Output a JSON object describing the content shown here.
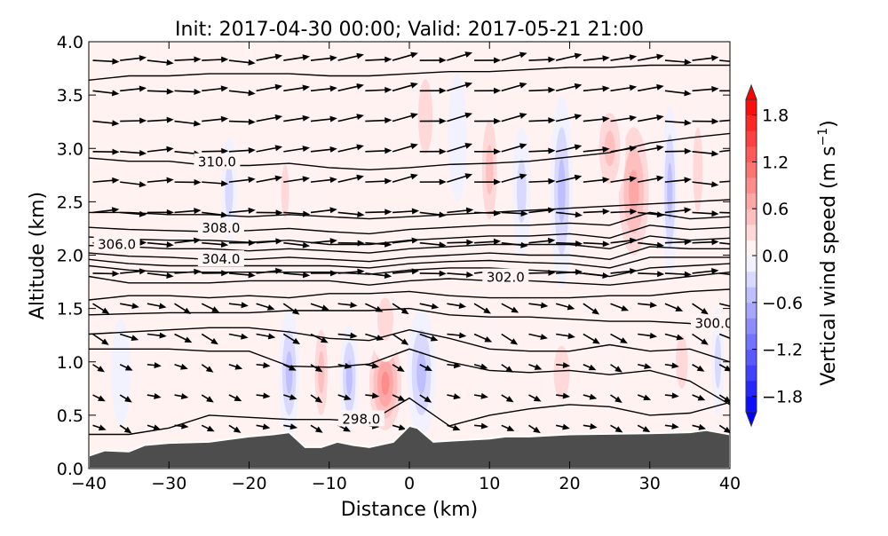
{
  "chart_data": {
    "type": "contourf-cross-section",
    "title": "Init: 2017-04-30 00:00; Valid: 2017-05-21 21:00",
    "xlabel": "Distance (km)",
    "ylabel": "Altitude (km)",
    "xlim": [
      -40,
      40
    ],
    "ylim": [
      0,
      4
    ],
    "xticks": [
      "−40",
      "−30",
      "−20",
      "−10",
      "0",
      "10",
      "20",
      "30",
      "40"
    ],
    "xtick_values": [
      -40,
      -30,
      -20,
      -10,
      0,
      10,
      20,
      30,
      40
    ],
    "yticks": [
      "0.0",
      "0.5",
      "1.0",
      "1.5",
      "2.0",
      "2.5",
      "3.0",
      "3.5",
      "4.0"
    ],
    "ytick_values": [
      0,
      0.5,
      1,
      1.5,
      2,
      2.5,
      3,
      3.5,
      4
    ],
    "colorbar": {
      "label": "Vertical wind speed (m s⁻¹)",
      "label_main": "Vertical wind speed (m s",
      "label_sup": "−1",
      "label_end": ")",
      "range": [
        -2,
        2
      ],
      "level_step": 0.2,
      "ticks": [
        "−1.8",
        "−1.2",
        "−0.6",
        "0.0",
        "0.6",
        "1.2",
        "1.8"
      ],
      "tick_values": [
        -1.8,
        -1.2,
        -0.6,
        0.0,
        0.6,
        1.2,
        1.8
      ],
      "colormap": "bwr"
    },
    "terrain": {
      "color": "#4d4d4d",
      "x": [
        -40,
        -38,
        -35,
        -33,
        -30,
        -25,
        -20,
        -17,
        -15,
        -13,
        -11,
        -9,
        -7,
        -5,
        -2,
        0,
        1,
        3,
        5,
        10,
        12,
        15,
        20,
        30,
        35,
        37,
        40
      ],
      "alt": [
        0.12,
        0.17,
        0.16,
        0.22,
        0.24,
        0.25,
        0.3,
        0.32,
        0.34,
        0.2,
        0.2,
        0.25,
        0.22,
        0.2,
        0.25,
        0.4,
        0.38,
        0.25,
        0.26,
        0.28,
        0.3,
        0.3,
        0.32,
        0.33,
        0.34,
        0.36,
        0.32
      ]
    },
    "vertical_wind_features": [
      {
        "x": -3,
        "alt": 0.8,
        "sx": 2.5,
        "sz": 0.55,
        "w": 1.0
      },
      {
        "x": -3,
        "alt": 1.4,
        "sx": 2.0,
        "sz": 0.4,
        "w": 0.4
      },
      {
        "x": 1.5,
        "alt": 0.9,
        "sx": 1.8,
        "sz": 0.6,
        "w": -0.7
      },
      {
        "x": 2,
        "alt": 3.3,
        "sx": 1.8,
        "sz": 0.7,
        "w": 0.4
      },
      {
        "x": -7.5,
        "alt": 0.85,
        "sx": 1.2,
        "sz": 0.5,
        "w": -0.6
      },
      {
        "x": -11,
        "alt": 0.9,
        "sx": 1.2,
        "sz": 0.6,
        "w": 0.6
      },
      {
        "x": -15,
        "alt": 0.9,
        "sx": 1.3,
        "sz": 0.6,
        "w": -0.7
      },
      {
        "x": -15.5,
        "alt": 2.6,
        "sx": 1.0,
        "sz": 0.5,
        "w": 0.4
      },
      {
        "x": -22.5,
        "alt": 2.6,
        "sx": 1.0,
        "sz": 0.5,
        "w": -0.4
      },
      {
        "x": -12,
        "alt": 2.4,
        "sx": 1.2,
        "sz": 0.6,
        "w": 0.3
      },
      {
        "x": 10,
        "alt": 2.8,
        "sx": 1.4,
        "sz": 0.7,
        "w": 0.5
      },
      {
        "x": 14,
        "alt": 2.6,
        "sx": 1.2,
        "sz": 0.6,
        "w": -0.4
      },
      {
        "x": 19,
        "alt": 2.6,
        "sx": 1.4,
        "sz": 0.9,
        "w": -0.6
      },
      {
        "x": 28,
        "alt": 2.6,
        "sx": 2.5,
        "sz": 0.8,
        "w": 0.8
      },
      {
        "x": 25,
        "alt": 3.0,
        "sx": 2.0,
        "sz": 0.5,
        "w": 0.5
      },
      {
        "x": 32.5,
        "alt": 2.6,
        "sx": 1.0,
        "sz": 0.8,
        "w": -0.5
      },
      {
        "x": 36,
        "alt": 2.8,
        "sx": 1.2,
        "sz": 0.8,
        "w": 0.4
      },
      {
        "x": 19,
        "alt": 0.9,
        "sx": 2.0,
        "sz": 0.5,
        "w": 0.4
      },
      {
        "x": 25,
        "alt": 1.0,
        "sx": 1.5,
        "sz": 0.5,
        "w": 0.3
      },
      {
        "x": 34,
        "alt": 1.0,
        "sx": 1.5,
        "sz": 0.5,
        "w": 0.4
      },
      {
        "x": 38.5,
        "alt": 1.0,
        "sx": 0.8,
        "sz": 0.5,
        "w": -0.4
      },
      {
        "x": 10,
        "alt": 1.0,
        "sx": 1.5,
        "sz": 0.5,
        "w": 0.3
      },
      {
        "x": 6,
        "alt": 3.1,
        "sx": 1.2,
        "sz": 0.6,
        "w": -0.3
      },
      {
        "x": -36,
        "alt": 0.9,
        "sx": 1.2,
        "sz": 0.5,
        "w": -0.3
      }
    ],
    "background_w": 0.1,
    "contour_x": [
      -40,
      -35,
      -30,
      -25,
      -20,
      -15,
      -10,
      -5,
      0,
      5,
      10,
      15,
      20,
      25,
      30,
      35,
      40
    ],
    "contours": [
      {
        "alt": [
          3.64,
          3.68,
          3.68,
          3.7,
          3.7,
          3.7,
          3.68,
          3.68,
          3.7,
          3.72,
          3.72,
          3.74,
          3.76,
          3.76,
          3.78,
          3.78,
          3.78
        ]
      },
      {
        "label": "310.0",
        "label_x": -24,
        "label_alt": 2.83,
        "alt": [
          2.91,
          2.88,
          2.88,
          2.84,
          2.84,
          2.86,
          2.82,
          2.8,
          2.82,
          2.85,
          2.86,
          2.88,
          2.92,
          2.96,
          3.05,
          3.1,
          3.14
        ]
      },
      {
        "alt": [
          2.4,
          2.4,
          2.38,
          2.38,
          2.36,
          2.38,
          2.36,
          2.34,
          2.36,
          2.38,
          2.4,
          2.42,
          2.44,
          2.46,
          2.48,
          2.5,
          2.52
        ]
      },
      {
        "label": "308.0",
        "label_x": -23.5,
        "label_alt": 2.21,
        "alt": [
          2.26,
          2.24,
          2.23,
          2.22,
          2.23,
          2.25,
          2.22,
          2.2,
          2.24,
          2.26,
          2.28,
          2.28,
          2.3,
          2.28,
          2.4,
          2.34,
          2.36
        ]
      },
      {
        "label": "306.0",
        "label_x": -36.5,
        "label_alt": 2.06,
        "alt": [
          2.17,
          2.15,
          2.14,
          2.14,
          2.12,
          2.14,
          2.1,
          2.1,
          2.14,
          2.16,
          2.18,
          2.18,
          2.2,
          2.16,
          2.28,
          2.24,
          2.26
        ]
      },
      {
        "alt": [
          2.09,
          2.08,
          2.06,
          2.06,
          2.04,
          2.06,
          2.04,
          2.02,
          2.06,
          2.08,
          2.1,
          2.1,
          2.1,
          2.06,
          2.18,
          2.14,
          2.16
        ]
      },
      {
        "label": "304.0",
        "label_x": -23.5,
        "label_alt": 1.92,
        "alt": [
          2.02,
          1.99,
          1.98,
          1.96,
          1.96,
          1.98,
          1.96,
          1.94,
          1.98,
          2.0,
          2.02,
          2.0,
          2.0,
          1.96,
          2.08,
          2.06,
          2.06
        ]
      },
      {
        "alt": [
          1.96,
          1.92,
          1.9,
          1.9,
          1.9,
          1.9,
          1.9,
          1.88,
          1.92,
          1.94,
          1.95,
          1.93,
          1.92,
          1.88,
          1.98,
          1.98,
          1.98
        ]
      },
      {
        "alt": [
          1.9,
          1.86,
          1.84,
          1.84,
          1.84,
          1.84,
          1.84,
          1.82,
          1.86,
          1.88,
          1.88,
          1.86,
          1.84,
          1.8,
          1.88,
          1.9,
          1.92
        ]
      },
      {
        "label": "302.0",
        "label_x": 12,
        "label_alt": 1.75,
        "alt": [
          1.8,
          1.74,
          1.74,
          1.74,
          1.76,
          1.76,
          1.76,
          1.72,
          1.76,
          1.78,
          1.76,
          1.76,
          1.74,
          1.72,
          1.76,
          1.8,
          1.84
        ]
      },
      {
        "alt": [
          1.58,
          1.62,
          1.62,
          1.6,
          1.62,
          1.6,
          1.64,
          1.64,
          1.66,
          1.62,
          1.6,
          1.6,
          1.6,
          1.62,
          1.62,
          1.66,
          1.68
        ]
      },
      {
        "label": "300.0",
        "label_x": 38,
        "label_alt": 1.32,
        "alt": [
          1.44,
          1.45,
          1.46,
          1.46,
          1.46,
          1.48,
          1.48,
          1.48,
          1.5,
          1.44,
          1.42,
          1.42,
          1.4,
          1.38,
          1.38,
          1.36,
          1.3
        ]
      },
      {
        "alt": [
          1.26,
          1.28,
          1.3,
          1.32,
          1.32,
          1.28,
          1.22,
          1.2,
          1.3,
          1.22,
          1.12,
          1.1,
          1.1,
          1.16,
          1.1,
          1.12,
          1.0
        ]
      },
      {
        "alt": [
          1.12,
          1.12,
          1.12,
          1.1,
          1.1,
          0.96,
          0.95,
          0.98,
          1.12,
          1.0,
          0.92,
          0.9,
          0.92,
          0.88,
          0.92,
          0.82,
          0.6
        ]
      },
      {
        "label": "298.0",
        "label_x": -6,
        "label_alt": 0.42,
        "alt": [
          0.32,
          0.32,
          0.38,
          0.5,
          0.48,
          0.46,
          0.46,
          0.44,
          0.66,
          0.4,
          0.5,
          0.56,
          0.6,
          0.58,
          0.5,
          0.52,
          0.62
        ]
      }
    ],
    "wind_vectors": {
      "x_spacing_km": 3.4,
      "alt_spacing_km": 0.285,
      "note": "mostly eastward flow, downward tilt in lowest 1.5 km"
    }
  }
}
